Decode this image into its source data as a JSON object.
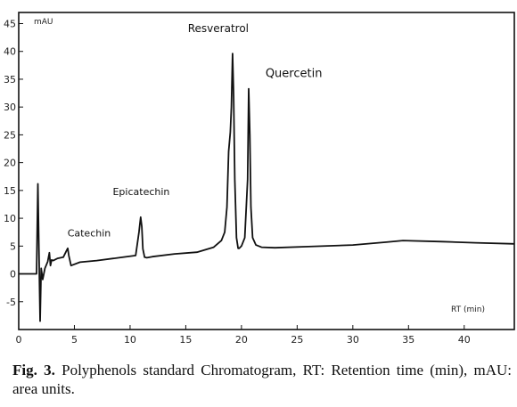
{
  "caption": {
    "prefix": "Fig. 3.",
    "text": "Polyphenols standard Chromatogram, RT: Retention time (min), mAU: area units."
  },
  "chart_data": {
    "type": "line",
    "title": "",
    "ylabel": "mAU",
    "xlabel": "RT (min)",
    "xlim": [
      0,
      44.5
    ],
    "ylim": [
      -10,
      47
    ],
    "x_ticks": [
      0,
      5,
      10,
      15,
      20,
      25,
      30,
      35,
      40
    ],
    "y_ticks": [
      -5,
      0,
      5,
      10,
      15,
      20,
      25,
      30,
      35,
      40,
      45
    ],
    "y_tick_labels": [
      "-5",
      "0",
      "5",
      "10",
      "15",
      "20",
      "25",
      "30",
      "35",
      "40",
      "45"
    ],
    "grid": false,
    "annotations": [
      {
        "label": "Catechin",
        "x": 4.4,
        "y": 4.2
      },
      {
        "label": "Epicatechin",
        "x": 11.0,
        "y": 10.2
      },
      {
        "label": "Resveratrol",
        "x": 19.2,
        "y": 39.6
      },
      {
        "label": "Quercetin",
        "x": 20.7,
        "y": 33.3
      }
    ],
    "series": [
      {
        "x": [
          0,
          1.5,
          1.6,
          1.72,
          1.82,
          1.92,
          2.02,
          2.15,
          2.35,
          2.6,
          2.75,
          2.85,
          2.95,
          3.1,
          3.5,
          4.0,
          4.3,
          4.4,
          4.5,
          4.7,
          5.5,
          7,
          9,
          10.5,
          10.8,
          10.95,
          11.05,
          11.15,
          11.3,
          11.5,
          12,
          14,
          16,
          17.5,
          18.2,
          18.5,
          18.7,
          18.85,
          19.0,
          19.1,
          19.2,
          19.3,
          19.4,
          19.55,
          19.7,
          19.8,
          20.0,
          20.3,
          20.55,
          20.65,
          20.75,
          20.85,
          21.0,
          21.3,
          21.8,
          23,
          26,
          30,
          33,
          34.5,
          38,
          41,
          44.5
        ],
        "y": [
          0,
          0,
          0,
          16.2,
          4,
          -8.5,
          1,
          -1,
          1,
          2.2,
          3.8,
          1.5,
          2.5,
          2.4,
          2.8,
          3.0,
          4.2,
          4.6,
          3.3,
          1.5,
          2.1,
          2.4,
          2.9,
          3.3,
          7.5,
          10.2,
          8.5,
          4.5,
          3.0,
          2.9,
          3.1,
          3.6,
          3.9,
          4.8,
          6.0,
          7.5,
          12,
          22,
          25.5,
          30,
          39.6,
          32,
          17,
          6.5,
          4.6,
          4.6,
          5.0,
          6.5,
          17,
          33.3,
          25,
          12,
          6.5,
          5.2,
          4.8,
          4.7,
          4.9,
          5.2,
          5.7,
          6.0,
          5.8,
          5.6,
          5.4
        ]
      }
    ]
  }
}
